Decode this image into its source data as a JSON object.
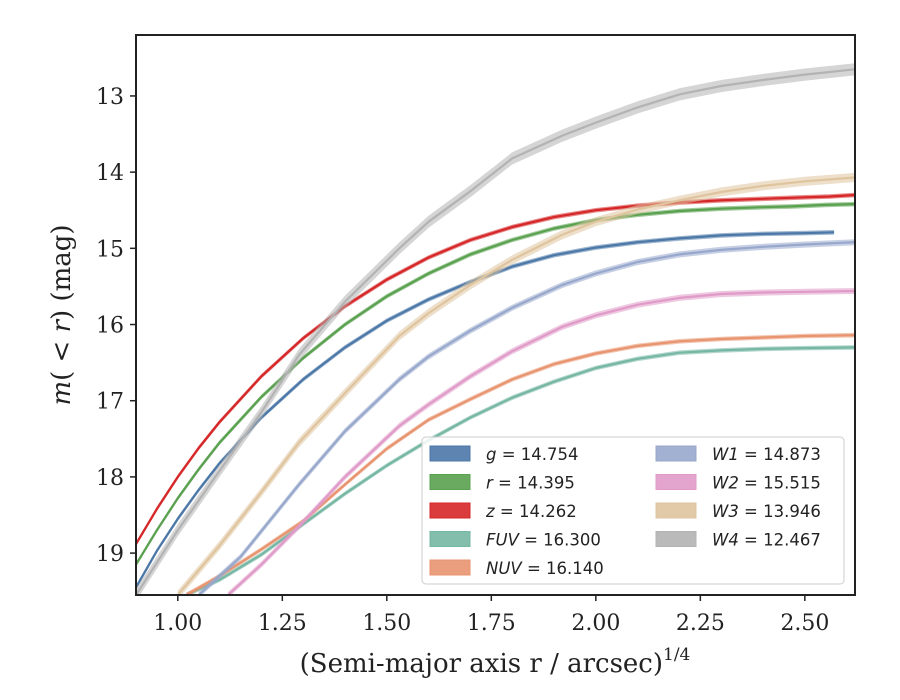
{
  "chart_data": {
    "type": "line",
    "title": "",
    "xlabel": "(Semi-major axis r / arcsec)",
    "xlabel_sup": "1/4",
    "ylabel": "m(< r) (mag)",
    "xlim": [
      0.9,
      2.62
    ],
    "ylim": [
      19.55,
      12.2
    ],
    "y_inverted": true,
    "x_ticks": [
      "1.00",
      "1.25",
      "1.50",
      "1.75",
      "2.00",
      "2.25",
      "2.50"
    ],
    "x_tick_values": [
      1.0,
      1.25,
      1.5,
      1.75,
      2.0,
      2.25,
      2.5
    ],
    "y_ticks": [
      "13",
      "14",
      "15",
      "16",
      "17",
      "18",
      "19"
    ],
    "y_tick_values": [
      13,
      14,
      15,
      16,
      17,
      18,
      19
    ],
    "grid": false,
    "legend_position": "lower-right",
    "series": [
      {
        "name": "g = 14.754",
        "name_italic": "g",
        "name_value": "= 14.754",
        "color": "#4c78a8",
        "x": [
          0.9,
          0.95,
          1.0,
          1.05,
          1.1,
          1.2,
          1.3,
          1.4,
          1.5,
          1.6,
          1.7,
          1.8,
          1.9,
          2.0,
          2.1,
          2.2,
          2.3,
          2.4,
          2.5,
          2.57
        ],
        "y": [
          19.45,
          18.97,
          18.55,
          18.17,
          17.82,
          17.22,
          16.72,
          16.3,
          15.95,
          15.67,
          15.44,
          15.24,
          15.09,
          14.99,
          14.92,
          14.87,
          14.83,
          14.81,
          14.8,
          14.79
        ],
        "band": [
          0.03,
          0.03
        ]
      },
      {
        "name": "r = 14.395",
        "name_italic": "r",
        "name_value": "= 14.395",
        "color": "#59a14f",
        "x": [
          0.9,
          0.95,
          1.0,
          1.05,
          1.1,
          1.2,
          1.3,
          1.4,
          1.5,
          1.6,
          1.7,
          1.8,
          1.9,
          2.0,
          2.1,
          2.2,
          2.3,
          2.4,
          2.47,
          2.55,
          2.62
        ],
        "y": [
          19.15,
          18.7,
          18.28,
          17.9,
          17.55,
          16.95,
          16.44,
          16.0,
          15.63,
          15.33,
          15.08,
          14.89,
          14.74,
          14.63,
          14.56,
          14.51,
          14.48,
          14.46,
          14.45,
          14.43,
          14.42
        ],
        "band": [
          0.03,
          0.03
        ]
      },
      {
        "name": "z = 14.262",
        "name_italic": "z",
        "name_value": "= 14.262",
        "color": "#d62728",
        "x": [
          0.9,
          0.95,
          1.0,
          1.05,
          1.1,
          1.2,
          1.3,
          1.4,
          1.5,
          1.6,
          1.7,
          1.8,
          1.9,
          2.0,
          2.1,
          2.2,
          2.3,
          2.4,
          2.5,
          2.56,
          2.62
        ],
        "y": [
          18.88,
          18.42,
          18.0,
          17.62,
          17.28,
          16.68,
          16.18,
          15.76,
          15.41,
          15.12,
          14.89,
          14.72,
          14.59,
          14.5,
          14.44,
          14.4,
          14.37,
          14.35,
          14.33,
          14.32,
          14.3
        ],
        "band": [
          0.03,
          0.03
        ]
      },
      {
        "name": "FUV = 16.300",
        "name_italic": "FUV",
        "name_value": "= 16.300",
        "color": "#76b7a4",
        "x": [
          1.02,
          1.1,
          1.2,
          1.3,
          1.4,
          1.5,
          1.6,
          1.7,
          1.8,
          1.9,
          2.0,
          2.1,
          2.2,
          2.3,
          2.4,
          2.5,
          2.62
        ],
        "y": [
          19.55,
          19.35,
          19.02,
          18.62,
          18.22,
          17.85,
          17.52,
          17.22,
          16.96,
          16.75,
          16.57,
          16.45,
          16.37,
          16.34,
          16.32,
          16.31,
          16.3
        ],
        "band": [
          0.03,
          0.03
        ]
      },
      {
        "name": "NUV = 16.140",
        "name_italic": "NUV",
        "name_value": "= 16.140",
        "color": "#e8946f",
        "x": [
          1.02,
          1.1,
          1.2,
          1.3,
          1.4,
          1.5,
          1.6,
          1.7,
          1.8,
          1.9,
          2.0,
          2.1,
          2.2,
          2.3,
          2.4,
          2.5,
          2.62
        ],
        "y": [
          19.55,
          19.3,
          18.95,
          18.58,
          18.1,
          17.63,
          17.25,
          16.98,
          16.72,
          16.52,
          16.38,
          16.28,
          16.22,
          16.19,
          16.17,
          16.15,
          16.14
        ],
        "band": [
          0.03,
          0.03
        ]
      },
      {
        "name": "W1 = 14.873",
        "name_italic": "W1",
        "name_value": "= 14.873",
        "color": "#98a8cc",
        "x": [
          1.05,
          1.15,
          1.29,
          1.4,
          1.53,
          1.6,
          1.7,
          1.8,
          1.92,
          2.0,
          2.1,
          2.2,
          2.3,
          2.4,
          2.5,
          2.62
        ],
        "y": [
          19.55,
          19.05,
          18.1,
          17.4,
          16.72,
          16.42,
          16.08,
          15.78,
          15.48,
          15.33,
          15.18,
          15.08,
          15.02,
          14.98,
          14.95,
          14.92
        ],
        "band": [
          0.04,
          0.04
        ]
      },
      {
        "name": "W2 = 15.515",
        "name_italic": "W2",
        "name_value": "= 15.515",
        "color": "#e09ac8",
        "x": [
          1.12,
          1.2,
          1.29,
          1.4,
          1.53,
          1.6,
          1.7,
          1.8,
          1.92,
          2.0,
          2.1,
          2.2,
          2.3,
          2.4,
          2.5,
          2.62
        ],
        "y": [
          19.55,
          19.15,
          18.65,
          18.0,
          17.33,
          17.05,
          16.68,
          16.35,
          16.03,
          15.88,
          15.74,
          15.65,
          15.6,
          15.58,
          15.57,
          15.56
        ],
        "band": [
          0.04,
          0.04
        ]
      },
      {
        "name": "W3 = 13.946",
        "name_italic": "W3",
        "name_value": "= 13.946",
        "color": "#dfc49e",
        "x": [
          1.0,
          1.1,
          1.2,
          1.29,
          1.4,
          1.53,
          1.6,
          1.7,
          1.8,
          1.92,
          2.0,
          2.1,
          2.2,
          2.3,
          2.4,
          2.5,
          2.62
        ],
        "y": [
          19.55,
          18.9,
          18.2,
          17.55,
          16.9,
          16.15,
          15.85,
          15.48,
          15.15,
          14.82,
          14.65,
          14.49,
          14.37,
          14.26,
          14.18,
          14.12,
          14.07
        ],
        "band": [
          0.06,
          0.06
        ]
      },
      {
        "name": "W4 = 12.467",
        "name_italic": "W4",
        "name_value": "= 12.467",
        "color": "#b3b3b3",
        "x": [
          0.9,
          1.0,
          1.1,
          1.2,
          1.29,
          1.4,
          1.53,
          1.6,
          1.7,
          1.8,
          1.92,
          2.0,
          2.1,
          2.2,
          2.3,
          2.4,
          2.5,
          2.62
        ],
        "y": [
          19.55,
          18.7,
          17.92,
          17.15,
          16.4,
          15.7,
          15.0,
          14.65,
          14.25,
          13.82,
          13.52,
          13.35,
          13.15,
          12.98,
          12.87,
          12.79,
          12.72,
          12.65
        ],
        "band": [
          0.08,
          0.08
        ]
      }
    ]
  }
}
